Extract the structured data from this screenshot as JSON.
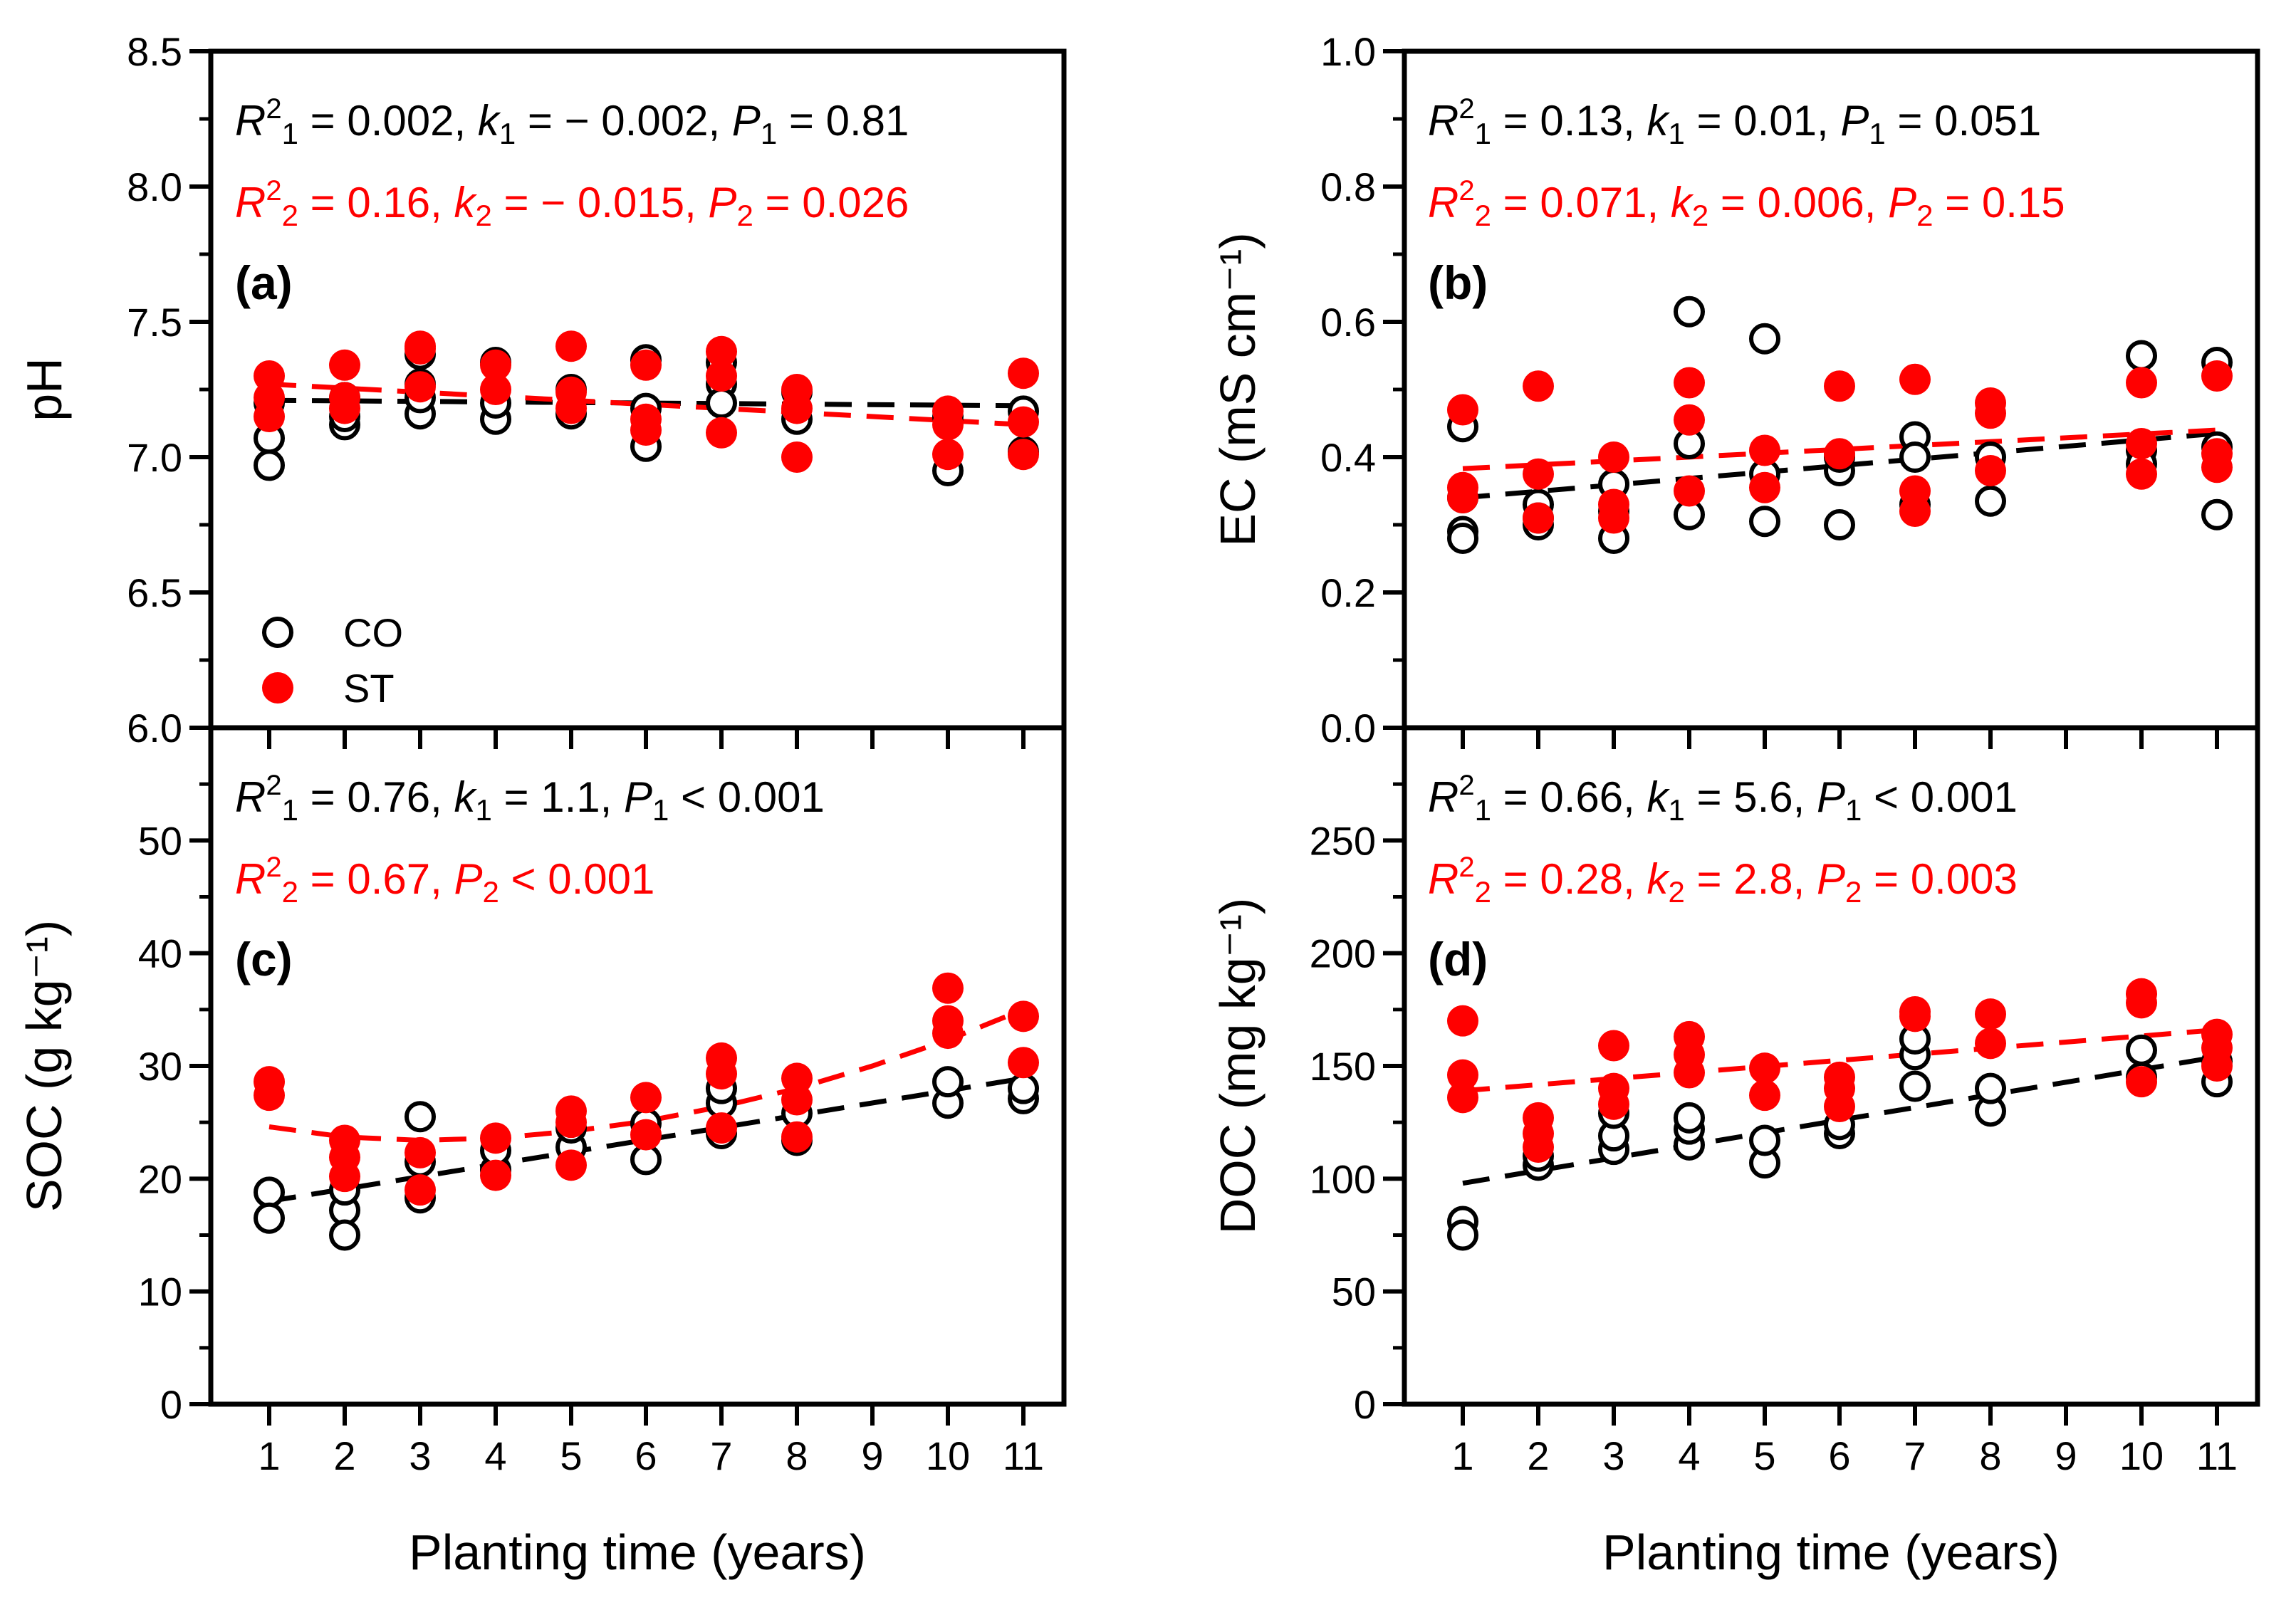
{
  "colors": {
    "co": "#000000",
    "st": "#ff0000"
  },
  "legend": [
    {
      "key": "co",
      "label": "CO",
      "marker": "open-circle"
    },
    {
      "key": "st",
      "label": "ST",
      "marker": "filled-circle"
    }
  ],
  "chart_data": [
    {
      "type": "scatter",
      "panel": "(a)",
      "ylabel": "pH",
      "xlabel": "",
      "xticks": [
        1,
        2,
        3,
        4,
        5,
        6,
        7,
        8,
        9,
        10,
        11
      ],
      "yticks": [
        "6.0",
        "6.5",
        "7.0",
        "7.5",
        "8.0",
        "8.5"
      ],
      "ylim": [
        6.0,
        8.5
      ],
      "legend": "bottom-left",
      "annotations": {
        "co": {
          "R2": "0.002",
          "k": "− 0.002",
          "P_rel": "=",
          "P": "0.81"
        },
        "st": {
          "R2": "0.16",
          "k": "− 0.015",
          "P_rel": "=",
          "P": "0.026"
        }
      },
      "series": [
        {
          "key": "co",
          "points": [
            [
              1,
              7.07
            ],
            [
              1,
              6.97
            ],
            [
              1,
              7.2
            ],
            [
              2,
              7.12
            ],
            [
              2,
              7.15
            ],
            [
              2,
              7.22
            ],
            [
              3,
              7.38
            ],
            [
              3,
              7.27
            ],
            [
              3,
              7.16
            ],
            [
              3,
              7.22
            ],
            [
              4,
              7.35
            ],
            [
              4,
              7.14
            ],
            [
              4,
              7.2
            ],
            [
              5,
              7.16
            ],
            [
              5,
              7.25
            ],
            [
              6,
              7.36
            ],
            [
              6,
              7.04
            ],
            [
              6,
              7.18
            ],
            [
              7,
              7.27
            ],
            [
              7,
              7.2
            ],
            [
              7,
              7.35
            ],
            [
              8,
              7.14
            ],
            [
              8,
              7.24
            ],
            [
              10,
              6.95
            ],
            [
              10,
              7.15
            ],
            [
              11,
              7.17
            ],
            [
              11,
              7.02
            ]
          ]
        },
        {
          "key": "st",
          "points": [
            [
              1,
              7.3
            ],
            [
              1,
              7.22
            ],
            [
              1,
              7.15
            ],
            [
              2,
              7.34
            ],
            [
              2,
              7.22
            ],
            [
              2,
              7.18
            ],
            [
              3,
              7.41
            ],
            [
              3,
              7.26
            ],
            [
              3,
              7.4
            ],
            [
              4,
              7.34
            ],
            [
              4,
              7.25
            ],
            [
              5,
              7.41
            ],
            [
              5,
              7.24
            ],
            [
              5,
              7.18
            ],
            [
              6,
              7.34
            ],
            [
              6,
              7.14
            ],
            [
              6,
              7.1
            ],
            [
              7,
              7.39
            ],
            [
              7,
              7.3
            ],
            [
              7,
              7.09
            ],
            [
              8,
              7.25
            ],
            [
              8,
              7.0
            ],
            [
              8,
              7.18
            ],
            [
              10,
              7.17
            ],
            [
              10,
              7.01
            ],
            [
              10,
              7.12
            ],
            [
              11,
              7.31
            ],
            [
              11,
              7.13
            ],
            [
              11,
              7.01
            ]
          ]
        }
      ],
      "fits": [
        {
          "key": "co",
          "points": [
            [
              1,
              7.21
            ],
            [
              11,
              7.19
            ]
          ]
        },
        {
          "key": "st",
          "points": [
            [
              1,
              7.27
            ],
            [
              11,
              7.12
            ]
          ]
        }
      ]
    },
    {
      "type": "scatter",
      "panel": "(b)",
      "ylabel": "EC (mS cm⁻¹)",
      "xlabel": "",
      "xticks": [
        1,
        2,
        3,
        4,
        5,
        6,
        7,
        8,
        9,
        10,
        11
      ],
      "yticks": [
        "0.0",
        "0.2",
        "0.4",
        "0.6",
        "0.8",
        "1.0"
      ],
      "ylim": [
        0.0,
        1.0
      ],
      "annotations": {
        "co": {
          "R2": "0.13",
          "k": "0.01",
          "P_rel": "=",
          "P": "0.051"
        },
        "st": {
          "R2": "0.071",
          "k": "0.006",
          "P_rel": "=",
          "P": "0.15"
        }
      },
      "series": [
        {
          "key": "co",
          "points": [
            [
              1,
              0.445
            ],
            [
              1,
              0.29
            ],
            [
              1,
              0.28
            ],
            [
              1,
              0.34
            ],
            [
              2,
              0.3
            ],
            [
              2,
              0.33
            ],
            [
              2,
              0.31
            ],
            [
              3,
              0.28
            ],
            [
              3,
              0.36
            ],
            [
              3,
              0.32
            ],
            [
              4,
              0.615
            ],
            [
              4,
              0.42
            ],
            [
              4,
              0.315
            ],
            [
              5,
              0.575
            ],
            [
              5,
              0.375
            ],
            [
              5,
              0.305
            ],
            [
              6,
              0.38
            ],
            [
              6,
              0.3
            ],
            [
              6,
              0.4
            ],
            [
              7,
              0.43
            ],
            [
              7,
              0.4
            ],
            [
              7,
              0.33
            ],
            [
              8,
              0.4
            ],
            [
              8,
              0.335
            ],
            [
              10,
              0.55
            ],
            [
              10,
              0.41
            ],
            [
              10,
              0.39
            ],
            [
              11,
              0.54
            ],
            [
              11,
              0.415
            ],
            [
              11,
              0.315
            ]
          ]
        },
        {
          "key": "st",
          "points": [
            [
              1,
              0.47
            ],
            [
              1,
              0.355
            ],
            [
              1,
              0.34
            ],
            [
              2,
              0.505
            ],
            [
              2,
              0.375
            ],
            [
              2,
              0.31
            ],
            [
              3,
              0.4
            ],
            [
              3,
              0.33
            ],
            [
              3,
              0.31
            ],
            [
              4,
              0.51
            ],
            [
              4,
              0.455
            ],
            [
              4,
              0.35
            ],
            [
              5,
              0.41
            ],
            [
              5,
              0.355
            ],
            [
              6,
              0.505
            ],
            [
              6,
              0.405
            ],
            [
              7,
              0.515
            ],
            [
              7,
              0.35
            ],
            [
              7,
              0.32
            ],
            [
              8,
              0.48
            ],
            [
              8,
              0.465
            ],
            [
              8,
              0.38
            ],
            [
              10,
              0.51
            ],
            [
              10,
              0.42
            ],
            [
              10,
              0.375
            ],
            [
              11,
              0.52
            ],
            [
              11,
              0.405
            ],
            [
              11,
              0.385
            ]
          ]
        }
      ],
      "fits": [
        {
          "key": "co",
          "points": [
            [
              1,
              0.34
            ],
            [
              11,
              0.435
            ]
          ]
        },
        {
          "key": "st",
          "points": [
            [
              1,
              0.383
            ],
            [
              11,
              0.44
            ]
          ]
        }
      ]
    },
    {
      "type": "scatter",
      "panel": "(c)",
      "ylabel": "SOC (g kg⁻¹)",
      "xlabel": "Planting time (years)",
      "xticks": [
        1,
        2,
        3,
        4,
        5,
        6,
        7,
        8,
        9,
        10,
        11
      ],
      "yticks": [
        "0",
        "10",
        "20",
        "30",
        "40",
        "50"
      ],
      "ylim": [
        0,
        60
      ],
      "annotations": {
        "co": {
          "R2": "0.76",
          "k": "1.1",
          "P_rel": "<",
          "P": "0.001"
        },
        "st": {
          "R2": "0.67",
          "P_rel": "<",
          "P": "0.001"
        }
      },
      "series": [
        {
          "key": "co",
          "points": [
            [
              1,
              18.8
            ],
            [
              1,
              16.5
            ],
            [
              2,
              17.2
            ],
            [
              2,
              15.0
            ],
            [
              2,
              19.0
            ],
            [
              3,
              25.5
            ],
            [
              3,
              18.3
            ],
            [
              3,
              21.5
            ],
            [
              4,
              20.8
            ],
            [
              4,
              22.5
            ],
            [
              5,
              22.8
            ],
            [
              5,
              24.5
            ],
            [
              6,
              21.7
            ],
            [
              6,
              24.9
            ],
            [
              7,
              24.0
            ],
            [
              7,
              26.7
            ],
            [
              7,
              28.0
            ],
            [
              8,
              23.4
            ],
            [
              8,
              25.8
            ],
            [
              10,
              26.7
            ],
            [
              10,
              28.6
            ],
            [
              11,
              27.1
            ],
            [
              11,
              28.0
            ]
          ]
        },
        {
          "key": "st",
          "points": [
            [
              1,
              28.6
            ],
            [
              1,
              27.4
            ],
            [
              2,
              23.4
            ],
            [
              2,
              21.9
            ],
            [
              2,
              20.2
            ],
            [
              3,
              22.3
            ],
            [
              3,
              19.0
            ],
            [
              4,
              23.6
            ],
            [
              4,
              20.3
            ],
            [
              5,
              26.0
            ],
            [
              5,
              21.2
            ],
            [
              5,
              25.0
            ],
            [
              6,
              27.2
            ],
            [
              6,
              23.9
            ],
            [
              7,
              30.7
            ],
            [
              7,
              29.3
            ],
            [
              7,
              24.5
            ],
            [
              8,
              28.9
            ],
            [
              8,
              27.0
            ],
            [
              8,
              23.7
            ],
            [
              10,
              36.9
            ],
            [
              10,
              34.0
            ],
            [
              10,
              32.9
            ],
            [
              11,
              34.4
            ],
            [
              11,
              30.3
            ]
          ]
        }
      ],
      "fits": [
        {
          "key": "co",
          "points": [
            [
              1,
              18.0
            ],
            [
              11,
              28.9
            ]
          ]
        },
        {
          "key": "st",
          "points": [
            [
              1,
              24.6
            ],
            [
              2,
              23.7
            ],
            [
              3,
              23.4
            ],
            [
              4,
              23.6
            ],
            [
              5,
              24.2
            ],
            [
              6,
              25.1
            ],
            [
              7,
              26.4
            ],
            [
              8,
              28.0
            ],
            [
              9,
              30.0
            ],
            [
              10,
              32.3
            ],
            [
              11,
              35.0
            ]
          ]
        }
      ]
    },
    {
      "type": "scatter",
      "panel": "(d)",
      "ylabel": "DOC (mg kg⁻¹)",
      "xlabel": "Planting time (years)",
      "xticks": [
        1,
        2,
        3,
        4,
        5,
        6,
        7,
        8,
        9,
        10,
        11
      ],
      "yticks": [
        "0",
        "50",
        "100",
        "150",
        "200",
        "250"
      ],
      "ylim": [
        0,
        300
      ],
      "annotations": {
        "co": {
          "R2": "0.66",
          "k": "5.6",
          "P_rel": "<",
          "P": "0.001"
        },
        "st": {
          "R2": "0.28",
          "k": "2.8",
          "P_rel": "=",
          "P": "0.003"
        }
      },
      "series": [
        {
          "key": "co",
          "points": [
            [
              1,
              81
            ],
            [
              1,
              75
            ],
            [
              2,
              106
            ],
            [
              2,
              110
            ],
            [
              3,
              113
            ],
            [
              3,
              119
            ],
            [
              3,
              129
            ],
            [
              4,
              115
            ],
            [
              4,
              122
            ],
            [
              4,
              127
            ],
            [
              5,
              107
            ],
            [
              5,
              117
            ],
            [
              6,
              120
            ],
            [
              6,
              124
            ],
            [
              7,
              141
            ],
            [
              7,
              155
            ],
            [
              7,
              162
            ],
            [
              8,
              130
            ],
            [
              8,
              140
            ],
            [
              10,
              157
            ],
            [
              10,
              145
            ],
            [
              11,
              143
            ],
            [
              11,
              152
            ]
          ]
        },
        {
          "key": "st",
          "points": [
            [
              1,
              170
            ],
            [
              1,
              146
            ],
            [
              1,
              136
            ],
            [
              2,
              127
            ],
            [
              2,
              120
            ],
            [
              2,
              114
            ],
            [
              3,
              159
            ],
            [
              3,
              140
            ],
            [
              3,
              133
            ],
            [
              4,
              163
            ],
            [
              4,
              155
            ],
            [
              4,
              147
            ],
            [
              5,
              149
            ],
            [
              5,
              137
            ],
            [
              6,
              145
            ],
            [
              6,
              140
            ],
            [
              6,
              132
            ],
            [
              7,
              174
            ],
            [
              7,
              172
            ],
            [
              8,
              173
            ],
            [
              8,
              160
            ],
            [
              10,
              182
            ],
            [
              10,
              178
            ],
            [
              10,
              143
            ],
            [
              11,
              164
            ],
            [
              11,
              158
            ],
            [
              11,
              150
            ]
          ]
        }
      ],
      "fits": [
        {
          "key": "co",
          "points": [
            [
              1,
              98
            ],
            [
              11,
              154
            ]
          ]
        },
        {
          "key": "st",
          "points": [
            [
              1,
              139
            ],
            [
              11,
              166
            ]
          ]
        }
      ]
    }
  ]
}
